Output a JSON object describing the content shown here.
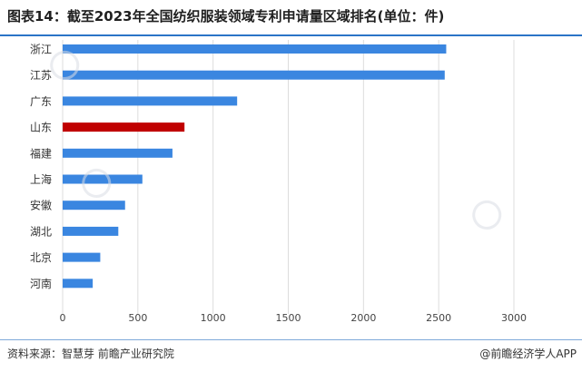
{
  "header": {
    "title": "图表14：截至2023年全国纺织服装领域专利申请量区域排名(单位：件)"
  },
  "footer": {
    "source": "资料来源：智慧芽 前瞻产业研究院",
    "brand": "@前瞻经济学人APP"
  },
  "watermark": {
    "text": "前瞻产业研究院"
  },
  "colors": {
    "bar": "#3a86e0",
    "highlight": "#c00000",
    "grid": "#dcdcdc",
    "rule": "#2b74c7"
  },
  "chart_data": {
    "type": "bar",
    "orientation": "horizontal",
    "title": "",
    "xlabel": "",
    "ylabel": "",
    "categories": [
      "浙江",
      "江苏",
      "广东",
      "山东",
      "福建",
      "上海",
      "安徽",
      "湖北",
      "北京",
      "河南"
    ],
    "values": [
      2550,
      2540,
      1160,
      810,
      730,
      530,
      415,
      370,
      250,
      200
    ],
    "highlight": "山东",
    "xlim": [
      0,
      3000
    ],
    "xticks": [
      0,
      500,
      1000,
      1500,
      2000,
      2500,
      3000
    ],
    "grid": "vertical"
  }
}
